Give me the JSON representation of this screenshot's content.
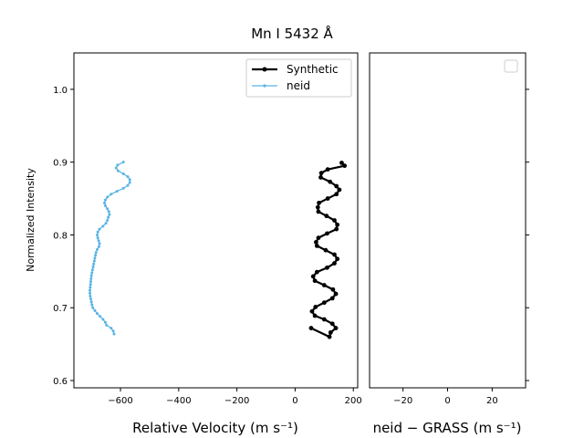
{
  "chart_data": {
    "type": "line",
    "title": "Mn I 5432 Å",
    "left_panel": {
      "xlabel": "Relative Velocity (m s⁻¹)",
      "ylabel": "Normalized Intensity",
      "xlim": [
        -760,
        215
      ],
      "ylim": [
        0.59,
        1.05
      ],
      "xticks": [
        -600,
        -400,
        -200,
        0,
        200
      ],
      "xtick_labels": [
        "−600",
        "−400",
        "−200",
        "0",
        "200"
      ],
      "yticks": [
        0.6,
        0.7,
        0.8,
        0.9,
        1.0
      ],
      "ytick_labels": [
        "0.6",
        "0.7",
        "0.8",
        "0.9",
        "1.0"
      ],
      "legend_position": "top-right",
      "series": [
        {
          "name": "Synthetic",
          "color": "#000000",
          "points": [
            [
              160,
              0.899
            ],
            [
              170,
              0.895
            ],
            [
              112,
              0.89
            ],
            [
              90,
              0.885
            ],
            [
              88,
              0.879
            ],
            [
              120,
              0.873
            ],
            [
              142,
              0.867
            ],
            [
              152,
              0.862
            ],
            [
              142,
              0.856
            ],
            [
              112,
              0.85
            ],
            [
              82,
              0.844
            ],
            [
              78,
              0.838
            ],
            [
              80,
              0.832
            ],
            [
              108,
              0.826
            ],
            [
              135,
              0.82
            ],
            [
              145,
              0.814
            ],
            [
              142,
              0.808
            ],
            [
              110,
              0.802
            ],
            [
              80,
              0.796
            ],
            [
              72,
              0.79
            ],
            [
              75,
              0.785
            ],
            [
              105,
              0.779
            ],
            [
              135,
              0.773
            ],
            [
              145,
              0.767
            ],
            [
              135,
              0.761
            ],
            [
              110,
              0.755
            ],
            [
              75,
              0.749
            ],
            [
              62,
              0.743
            ],
            [
              68,
              0.737
            ],
            [
              100,
              0.731
            ],
            [
              130,
              0.725
            ],
            [
              140,
              0.719
            ],
            [
              128,
              0.713
            ],
            [
              100,
              0.707
            ],
            [
              70,
              0.701
            ],
            [
              58,
              0.695
            ],
            [
              68,
              0.689
            ],
            [
              100,
              0.684
            ],
            [
              128,
              0.678
            ],
            [
              140,
              0.672
            ],
            [
              122,
              0.666
            ],
            [
              118,
              0.66
            ],
            [
              55,
              0.672
            ]
          ]
        },
        {
          "name": "neid",
          "color": "#5ab4e5",
          "points": [
            [
              -590,
              0.9
            ],
            [
              -610,
              0.896
            ],
            [
              -615,
              0.892
            ],
            [
              -608,
              0.888
            ],
            [
              -590,
              0.884
            ],
            [
              -575,
              0.88
            ],
            [
              -568,
              0.876
            ],
            [
              -568,
              0.872
            ],
            [
              -575,
              0.868
            ],
            [
              -590,
              0.864
            ],
            [
              -612,
              0.86
            ],
            [
              -632,
              0.856
            ],
            [
              -645,
              0.852
            ],
            [
              -652,
              0.848
            ],
            [
              -655,
              0.844
            ],
            [
              -652,
              0.84
            ],
            [
              -645,
              0.836
            ],
            [
              -640,
              0.832
            ],
            [
              -638,
              0.828
            ],
            [
              -642,
              0.824
            ],
            [
              -645,
              0.82
            ],
            [
              -650,
              0.816
            ],
            [
              -660,
              0.812
            ],
            [
              -672,
              0.808
            ],
            [
              -678,
              0.804
            ],
            [
              -680,
              0.8
            ],
            [
              -678,
              0.796
            ],
            [
              -675,
              0.792
            ],
            [
              -672,
              0.788
            ],
            [
              -674,
              0.784
            ],
            [
              -680,
              0.78
            ],
            [
              -684,
              0.776
            ],
            [
              -686,
              0.772
            ],
            [
              -688,
              0.768
            ],
            [
              -690,
              0.764
            ],
            [
              -692,
              0.76
            ],
            [
              -694,
              0.756
            ],
            [
              -696,
              0.752
            ],
            [
              -698,
              0.748
            ],
            [
              -700,
              0.744
            ],
            [
              -701,
              0.74
            ],
            [
              -702,
              0.736
            ],
            [
              -703,
              0.732
            ],
            [
              -704,
              0.728
            ],
            [
              -705,
              0.724
            ],
            [
              -705,
              0.72
            ],
            [
              -704,
              0.716
            ],
            [
              -702,
              0.712
            ],
            [
              -700,
              0.708
            ],
            [
              -698,
              0.704
            ],
            [
              -695,
              0.7
            ],
            [
              -688,
              0.696
            ],
            [
              -680,
              0.692
            ],
            [
              -670,
              0.688
            ],
            [
              -660,
              0.684
            ],
            [
              -652,
              0.68
            ],
            [
              -648,
              0.676
            ],
            [
              -632,
              0.672
            ],
            [
              -625,
              0.668
            ],
            [
              -622,
              0.664
            ]
          ]
        }
      ]
    },
    "right_panel": {
      "xlabel": "neid − GRASS (m s⁻¹)",
      "xlim": [
        -35,
        35
      ],
      "ylim": [
        0.59,
        1.05
      ],
      "xticks": [
        -20,
        0,
        20
      ],
      "xtick_labels": [
        "−20",
        "0",
        "20"
      ],
      "legend_position": "top-right",
      "series": []
    }
  }
}
